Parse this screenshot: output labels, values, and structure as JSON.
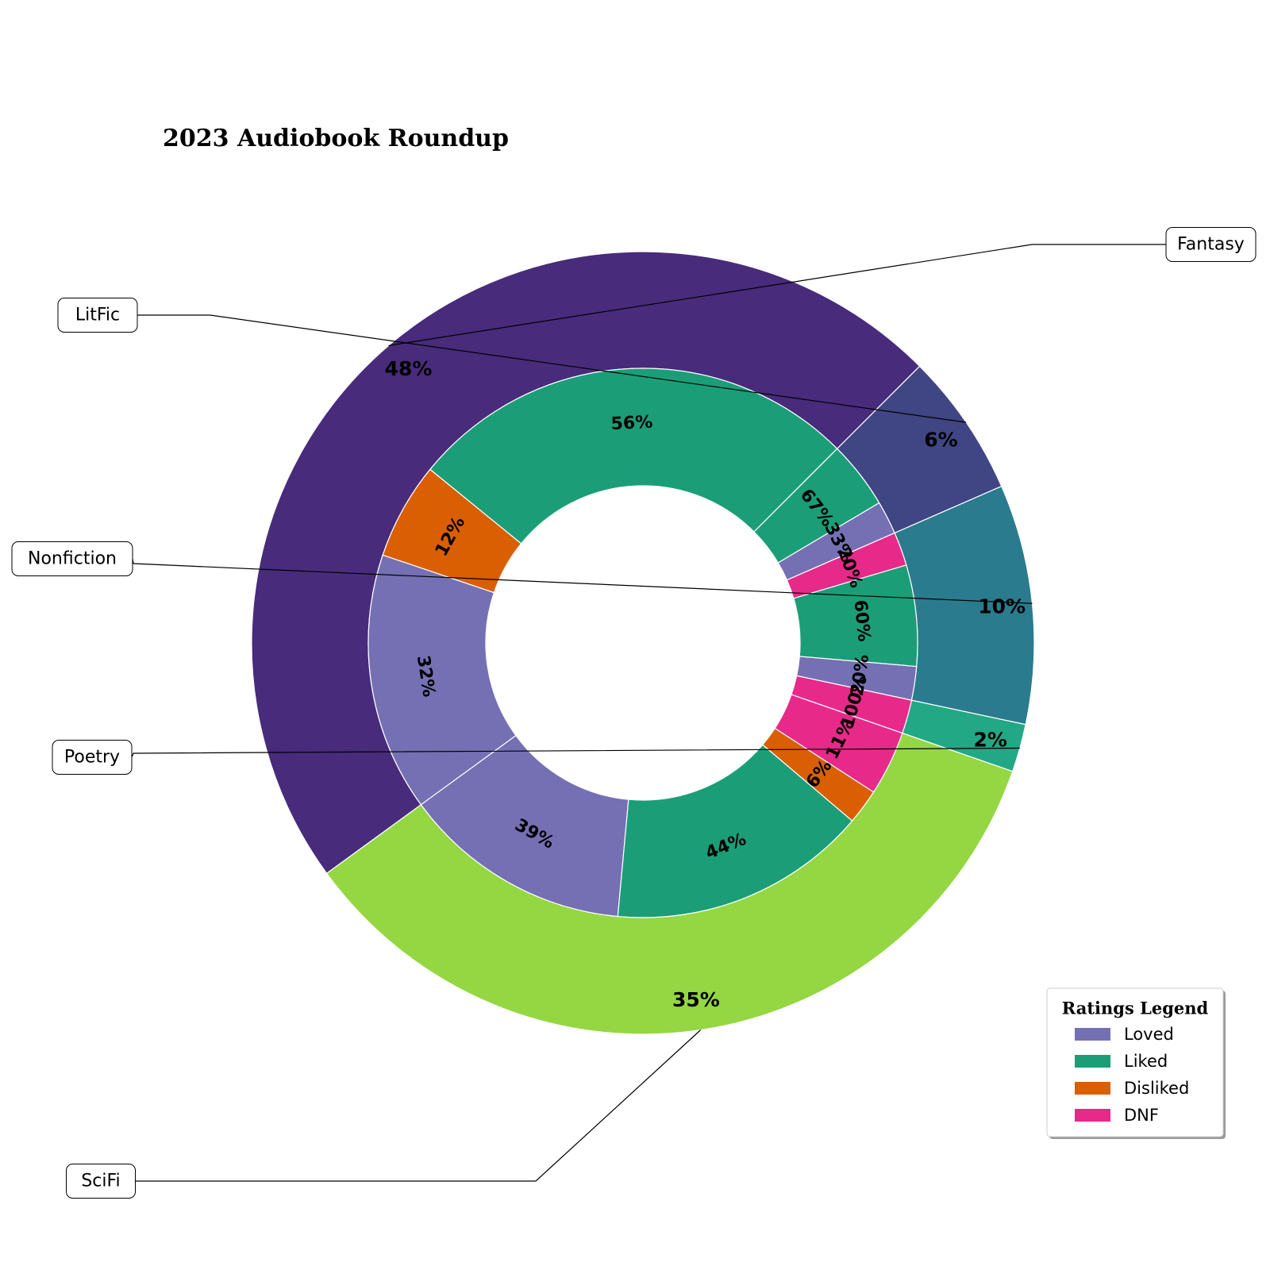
{
  "chart_data": {
    "type": "donut",
    "title": "2023 Audiobook Roundup",
    "outer_ring": [
      {
        "name": "Fantasy",
        "value": 48,
        "label": "48%",
        "color": "#482b7b"
      },
      {
        "name": "SciFi",
        "value": 35,
        "label": "35%",
        "color": "#94d742"
      },
      {
        "name": "Poetry",
        "value": 2,
        "label": "2%",
        "color": "#22a884"
      },
      {
        "name": "Nonfiction",
        "value": 10,
        "label": "10%",
        "color": "#2a7b8d"
      },
      {
        "name": "LitFic",
        "value": 6,
        "label": "6%",
        "color": "#404584"
      }
    ],
    "inner_ring": [
      {
        "genre": "Fantasy",
        "rating": "Liked",
        "value": 56,
        "label": "56%"
      },
      {
        "genre": "Fantasy",
        "rating": "Disliked",
        "value": 12,
        "label": "12%"
      },
      {
        "genre": "Fantasy",
        "rating": "Loved",
        "value": 32,
        "label": "32%"
      },
      {
        "genre": "SciFi",
        "rating": "Loved",
        "value": 39,
        "label": "39%"
      },
      {
        "genre": "SciFi",
        "rating": "Liked",
        "value": 44,
        "label": "44%"
      },
      {
        "genre": "SciFi",
        "rating": "Disliked",
        "value": 6,
        "label": "6%"
      },
      {
        "genre": "SciFi",
        "rating": "DNF",
        "value": 11,
        "label": "11%"
      },
      {
        "genre": "Poetry",
        "rating": "DNF",
        "value": 100,
        "label": "100%"
      },
      {
        "genre": "Nonfiction",
        "rating": "Loved",
        "value": 20,
        "label": "20%"
      },
      {
        "genre": "Nonfiction",
        "rating": "Liked",
        "value": 60,
        "label": "60%"
      },
      {
        "genre": "Nonfiction",
        "rating": "DNF",
        "value": 20,
        "label": "20%"
      },
      {
        "genre": "LitFic",
        "rating": "Loved",
        "value": 33,
        "label": "33%"
      },
      {
        "genre": "LitFic",
        "rating": "Liked",
        "value": 67,
        "label": "67%"
      }
    ],
    "legend": {
      "title": "Ratings Legend",
      "placement": "bottom-right",
      "items": [
        {
          "name": "Loved",
          "color": "#7570b3"
        },
        {
          "name": "Liked",
          "color": "#1b9e77"
        },
        {
          "name": "Disliked",
          "color": "#d95f02"
        },
        {
          "name": "DNF",
          "color": "#e7298a"
        }
      ]
    }
  }
}
